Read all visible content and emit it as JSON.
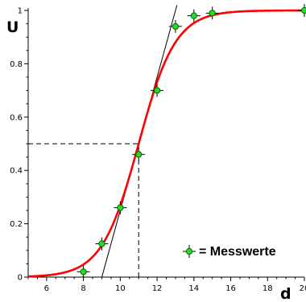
{
  "chart_data": {
    "type": "scatter",
    "title": "",
    "xlabel": "d",
    "ylabel": "U",
    "xlim": [
      5,
      20
    ],
    "ylim": [
      0,
      1
    ],
    "grid": false,
    "x_ticks": [
      6,
      8,
      10,
      12,
      14,
      16,
      18,
      20
    ],
    "x_tick_labels": [
      "6",
      "8",
      "10",
      "12",
      "14",
      "16",
      "18",
      "20"
    ],
    "y_ticks": [
      0,
      0.2,
      0.4,
      0.6,
      0.8,
      1
    ],
    "y_tick_labels": [
      "0",
      "0.2",
      "0.4",
      "0.6",
      "0.8",
      "1"
    ],
    "series": [
      {
        "name": "Messwerte",
        "marker": "green-circle-with-error-cross",
        "color": "#22dd22",
        "x": [
          8,
          9,
          10,
          11,
          12,
          13,
          14,
          15,
          20
        ],
        "y": [
          0.02,
          0.125,
          0.26,
          0.46,
          0.7,
          0.94,
          0.98,
          0.99,
          1.0
        ]
      }
    ],
    "fit_curve": {
      "type": "logistic",
      "color": "#ff0000",
      "midpoint_x": 11,
      "slope_k": 1.0
    },
    "tangent_line": {
      "color": "#000000",
      "through_x": 11,
      "through_y": 0.5,
      "slope": 0.25
    },
    "guide_lines": {
      "style": "dashed",
      "x": 11,
      "y": 0.5
    },
    "legend": {
      "placement": "bottom-right",
      "symbol": "= Messwerte"
    }
  }
}
